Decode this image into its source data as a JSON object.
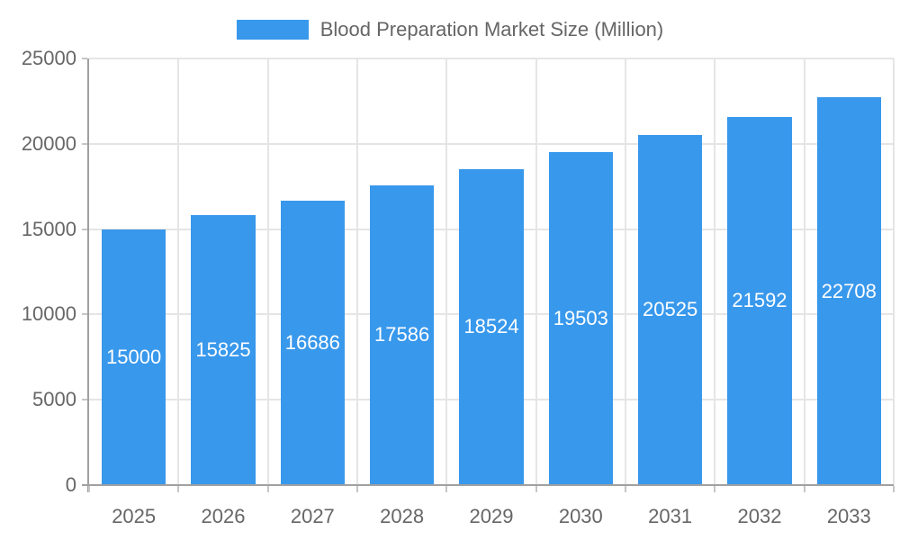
{
  "legend": {
    "series_label": "Blood Preparation Market Size (Million)"
  },
  "chart_data": {
    "type": "bar",
    "title": "Blood Preparation Market Size (Million)",
    "categories": [
      "2025",
      "2026",
      "2027",
      "2028",
      "2029",
      "2030",
      "2031",
      "2032",
      "2033"
    ],
    "values": [
      15000,
      15825,
      16686,
      17586,
      18524,
      19503,
      20525,
      21592,
      22708
    ],
    "series_name": "Blood Preparation Market Size (Million)",
    "xlabel": "",
    "ylabel": "",
    "ylim": [
      0,
      25000
    ],
    "y_ticks": [
      0,
      5000,
      10000,
      15000,
      20000,
      25000
    ],
    "grid": true,
    "legend_position": "top",
    "data_labels_position": "center",
    "colors": {
      "bar": "#3898EC",
      "data_label": "#ffffff",
      "axis_text": "#666666",
      "gridline": "#e5e5e5",
      "axis_line": "#a0a0a0",
      "tick": "#c6c6c6",
      "background": "#ffffff"
    }
  }
}
